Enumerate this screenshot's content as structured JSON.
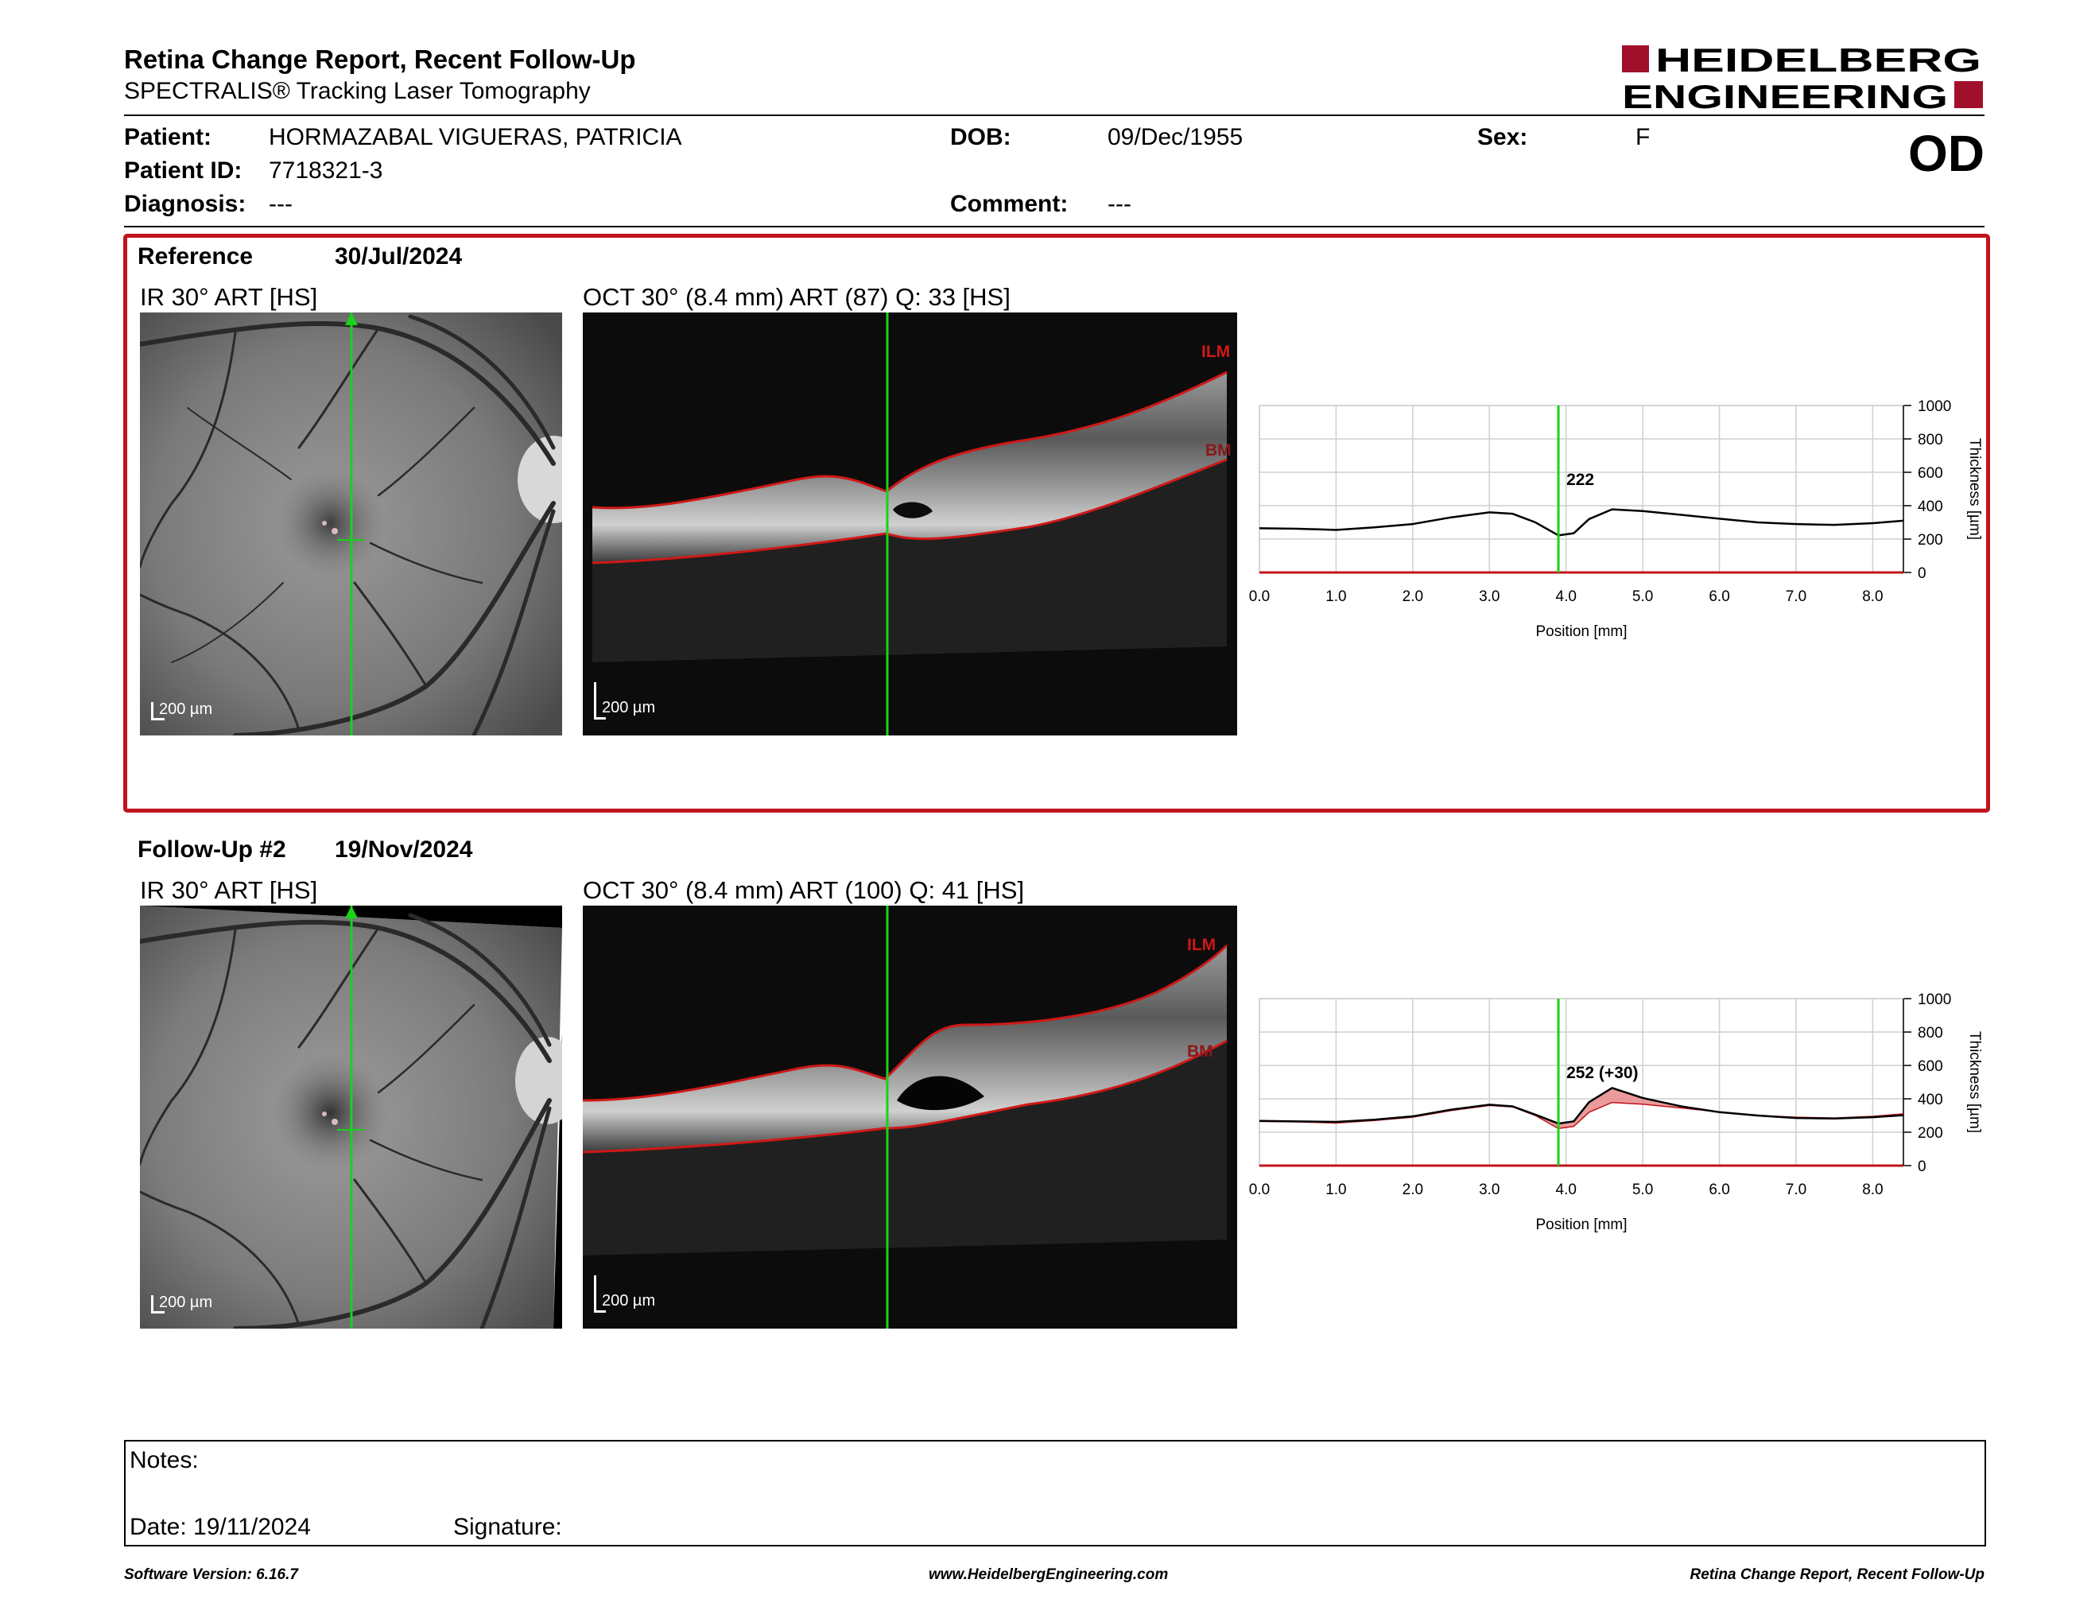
{
  "report": {
    "title": "Retina Change Report, Recent Follow-Up",
    "subtitle": "SPECTRALIS® Tracking Laser Tomography",
    "brand_line1": "HEIDELBERG",
    "brand_line2": "ENGINEERING",
    "eye": "OD"
  },
  "patient": {
    "patient_label": "Patient:",
    "patient_value": "HORMAZABAL VIGUERAS, PATRICIA",
    "id_label": "Patient ID:",
    "id_value": "7718321-3",
    "diagnosis_label": "Diagnosis:",
    "diagnosis_value": "---",
    "dob_label": "DOB:",
    "dob_value": "09/Dec/1955",
    "comment_label": "Comment:",
    "comment_value": "---",
    "sex_label": "Sex:",
    "sex_value": "F"
  },
  "reference": {
    "label": "Reference",
    "date": "30/Jul/2024",
    "ir_caption": "IR 30° ART [HS]",
    "oct_caption": "OCT 30° (8.4 mm) ART (87) Q: 33 [HS]",
    "scale": "200 µm",
    "ilm": "ILM",
    "bm": "BM"
  },
  "followup": {
    "label": "Follow-Up #2",
    "date": "19/Nov/2024",
    "ir_caption": "IR 30° ART [HS]",
    "oct_caption": "OCT 30° (8.4 mm) ART (100) Q: 41 [HS]",
    "scale": "200 µm",
    "ilm": "ILM",
    "bm": "BM"
  },
  "notes": {
    "notes_label": "Notes:",
    "date_label": "Date: 19/11/2024",
    "signature_label": "Signature:"
  },
  "footer": {
    "software": "Software Version: 6.16.7",
    "website": "www.HeidelbergEngineering.com",
    "report_name": "Retina Change Report, Recent Follow-Up"
  },
  "colors": {
    "accent_red": "#c0141c",
    "cursor_green": "#19d219",
    "change_fill": "#e88a8a"
  },
  "chart_data": [
    {
      "type": "line",
      "xlabel": "Position [mm]",
      "ylabel": "Thickness [µm]",
      "xlim": [
        0,
        8.4
      ],
      "ylim": [
        0,
        1000
      ],
      "x_ticks": [
        "0.0",
        "1.0",
        "2.0",
        "3.0",
        "4.0",
        "5.0",
        "6.0",
        "7.0",
        "8.0"
      ],
      "y_ticks": [
        "0",
        "200",
        "400",
        "600",
        "800",
        "1000"
      ],
      "cursor_x": 3.9,
      "cursor_label": "222",
      "grid": true,
      "series": [
        {
          "x": [
            0.0,
            0.5,
            1.0,
            1.5,
            2.0,
            2.5,
            3.0,
            3.3,
            3.6,
            3.9,
            4.1,
            4.3,
            4.6,
            5.0,
            5.5,
            6.0,
            6.5,
            7.0,
            7.5,
            8.0,
            8.4
          ],
          "values": [
            265,
            262,
            255,
            270,
            290,
            330,
            360,
            352,
            300,
            222,
            235,
            320,
            378,
            368,
            345,
            322,
            300,
            290,
            285,
            295,
            310
          ]
        }
      ]
    },
    {
      "type": "area",
      "xlabel": "Position [mm]",
      "ylabel": "Thickness [µm]",
      "xlim": [
        0,
        8.4
      ],
      "ylim": [
        0,
        1000
      ],
      "x_ticks": [
        "0.0",
        "1.0",
        "2.0",
        "3.0",
        "4.0",
        "5.0",
        "6.0",
        "7.0",
        "8.0"
      ],
      "y_ticks": [
        "0",
        "200",
        "400",
        "600",
        "800",
        "1000"
      ],
      "cursor_x": 3.9,
      "cursor_label": "252 (+30)",
      "grid": true,
      "series": [
        {
          "x": [
            0.0,
            0.5,
            1.0,
            1.5,
            2.0,
            2.5,
            3.0,
            3.3,
            3.6,
            3.9,
            4.1,
            4.3,
            4.6,
            5.0,
            5.5,
            6.0,
            6.5,
            7.0,
            7.5,
            8.0,
            8.4
          ],
          "values": [
            268,
            265,
            262,
            275,
            295,
            335,
            365,
            355,
            305,
            252,
            265,
            380,
            465,
            405,
            355,
            320,
            300,
            285,
            282,
            290,
            302
          ]
        },
        {
          "x": [
            0.0,
            0.5,
            1.0,
            1.5,
            2.0,
            2.5,
            3.0,
            3.3,
            3.6,
            3.9,
            4.1,
            4.3,
            4.6,
            5.0,
            5.5,
            6.0,
            6.5,
            7.0,
            7.5,
            8.0,
            8.4
          ],
          "values": [
            265,
            262,
            255,
            270,
            290,
            330,
            360,
            352,
            300,
            222,
            235,
            320,
            378,
            368,
            345,
            322,
            300,
            290,
            285,
            295,
            310
          ]
        }
      ]
    }
  ]
}
